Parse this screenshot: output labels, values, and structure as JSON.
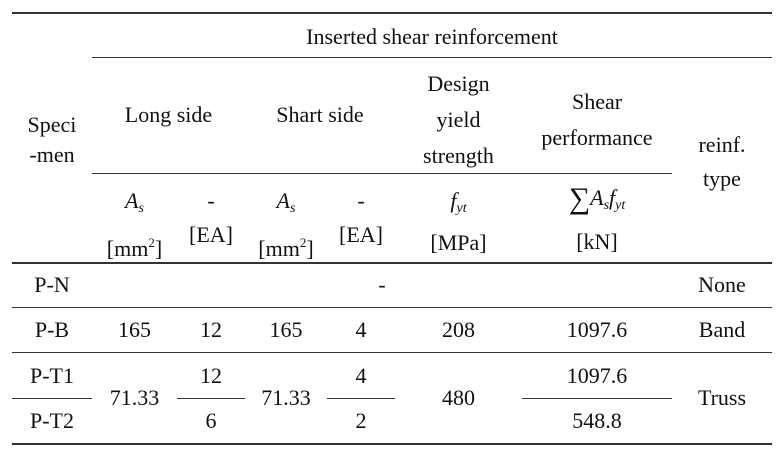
{
  "header": {
    "group_title": "Inserted shear reinforcement",
    "specimen_line1": "Speci",
    "specimen_line2": "-men",
    "long_side": "Long side",
    "short_side": "Shart side",
    "design_line1": "Design",
    "design_line2": "yield",
    "design_line3": "strength",
    "shear_line1": "Shear",
    "shear_line2": "performance",
    "reinf_line1": "reinf.",
    "reinf_line2": "type"
  },
  "units": {
    "as_symbol": "A",
    "as_sub": "s",
    "mm_unit_pre": "[mm",
    "mm_unit_sup": "2",
    "mm_unit_post": "]",
    "dash": "-",
    "ea_unit": "[EA]",
    "fyt_symbol": "f",
    "fyt_sub": "yt",
    "mpa_unit": "[MPa]",
    "sum_symbol": "∑",
    "sum_a": "A",
    "sum_a_sub": "s",
    "sum_f": "f",
    "sum_f_sub": "yt",
    "kn_unit": "[kN]"
  },
  "rows": {
    "pn": {
      "specimen": "P-N",
      "middle": "-",
      "type": "None"
    },
    "pb": {
      "specimen": "P-B",
      "long_as": "165",
      "long_ea": "12",
      "short_as": "165",
      "short_ea": "4",
      "fyt": "208",
      "shear": "1097.6",
      "type": "Band"
    },
    "pt": {
      "t1": "P-T1",
      "t2": "P-T2",
      "long_as": "71.33",
      "long_ea_t1": "12",
      "long_ea_t2": "6",
      "short_as": "71.33",
      "short_ea_t1": "4",
      "short_ea_t2": "2",
      "fyt": "480",
      "shear_t1": "1097.6",
      "shear_t2": "548.8",
      "type": "Truss"
    }
  }
}
